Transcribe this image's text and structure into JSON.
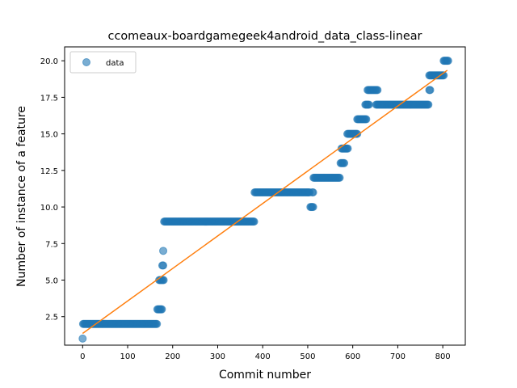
{
  "chart_data": {
    "type": "scatter",
    "title": "ccomeaux-boardgamegeek4android_data_class-linear",
    "xlabel": "Commit number",
    "ylabel": "Number of instance of a feature",
    "xlim": [
      -40,
      850
    ],
    "ylim": [
      0.55,
      20.95
    ],
    "xticks": [
      "0",
      "100",
      "200",
      "300",
      "400",
      "500",
      "600",
      "700",
      "800"
    ],
    "xtick_values": [
      0,
      100,
      200,
      300,
      400,
      500,
      600,
      700,
      800
    ],
    "yticks": [
      "2.5",
      "5.0",
      "7.5",
      "10.0",
      "12.5",
      "15.0",
      "17.5",
      "20.0"
    ],
    "ytick_values": [
      2.5,
      5.0,
      7.5,
      10.0,
      12.5,
      15.0,
      17.5,
      20.0
    ],
    "legend": {
      "label": "data",
      "location": "upper-left"
    },
    "colors": {
      "data": "#1f77b4",
      "fit": "#ff7f0e"
    },
    "series": [
      {
        "name": "data",
        "kind": "points",
        "segments": [
          {
            "x_start": 0,
            "x_end": 0,
            "y": 1
          },
          {
            "x_start": 1,
            "x_end": 165,
            "y": 2
          },
          {
            "x_start": 166,
            "x_end": 176,
            "y": 3
          },
          {
            "x_start": 170,
            "x_end": 180,
            "y": 5
          },
          {
            "x_start": 177,
            "x_end": 180,
            "y": 6
          },
          {
            "x_start": 179,
            "x_end": 179,
            "y": 7
          },
          {
            "x_start": 181,
            "x_end": 381,
            "y": 9
          },
          {
            "x_start": 382,
            "x_end": 505,
            "y": 11
          },
          {
            "x_start": 506,
            "x_end": 512,
            "y": 10
          },
          {
            "x_start": 510,
            "x_end": 513,
            "y": 11
          },
          {
            "x_start": 513,
            "x_end": 572,
            "y": 12
          },
          {
            "x_start": 573,
            "x_end": 582,
            "y": 13
          },
          {
            "x_start": 575,
            "x_end": 590,
            "y": 14
          },
          {
            "x_start": 588,
            "x_end": 610,
            "y": 15
          },
          {
            "x_start": 610,
            "x_end": 630,
            "y": 16
          },
          {
            "x_start": 628,
            "x_end": 636,
            "y": 17
          },
          {
            "x_start": 633,
            "x_end": 655,
            "y": 18
          },
          {
            "x_start": 652,
            "x_end": 768,
            "y": 17
          },
          {
            "x_start": 770,
            "x_end": 772,
            "y": 18
          },
          {
            "x_start": 770,
            "x_end": 802,
            "y": 19
          },
          {
            "x_start": 802,
            "x_end": 812,
            "y": 20
          }
        ]
      },
      {
        "name": "fit",
        "kind": "line",
        "x": [
          0,
          810
        ],
        "y": [
          1.35,
          19.35
        ]
      }
    ]
  }
}
